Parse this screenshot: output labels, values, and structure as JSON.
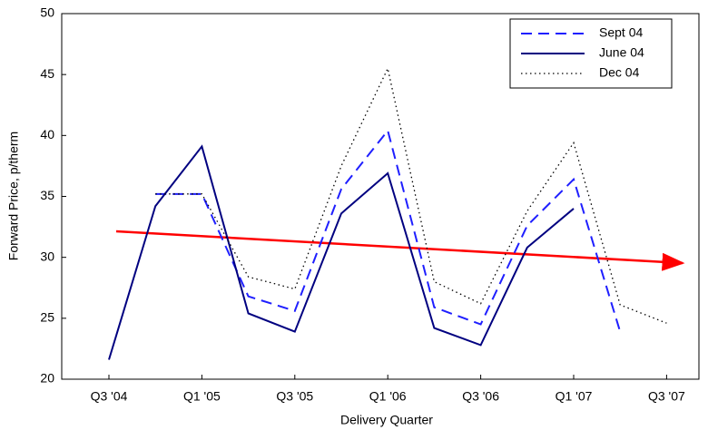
{
  "chart_data": {
    "type": "line",
    "x_label": "Delivery Quarter",
    "y_label": "Forward Price, p/therm",
    "categories": [
      "Q3 '04",
      null,
      "Q1 '05",
      null,
      "Q3 '05",
      null,
      "Q1 '06",
      null,
      "Q3 '06",
      null,
      "Q1 '07",
      null,
      "Q3 '07"
    ],
    "series": [
      {
        "name": "Sept 04",
        "color": "#1f1fff",
        "style": "dashed",
        "values": [
          null,
          35.2,
          35.2,
          26.8,
          25.6,
          35.6,
          40.4,
          25.9,
          24.5,
          32.6,
          36.4,
          23.9,
          null
        ]
      },
      {
        "name": "June 04",
        "color": "#000080",
        "style": "solid",
        "values": [
          21.6,
          34.2,
          39.1,
          25.4,
          23.9,
          33.6,
          36.9,
          24.2,
          22.8,
          30.8,
          34.0,
          null,
          null
        ]
      },
      {
        "name": "Dec 04",
        "color": "#000000",
        "style": "dotted",
        "values": [
          null,
          35.2,
          35.2,
          28.4,
          27.4,
          37.5,
          45.5,
          28.0,
          26.2,
          33.8,
          39.4,
          26.1,
          24.6
        ]
      }
    ],
    "ylim": [
      20,
      50
    ],
    "yticks": [
      20,
      25,
      30,
      35,
      40,
      45,
      50
    ],
    "legend": "top-right"
  }
}
